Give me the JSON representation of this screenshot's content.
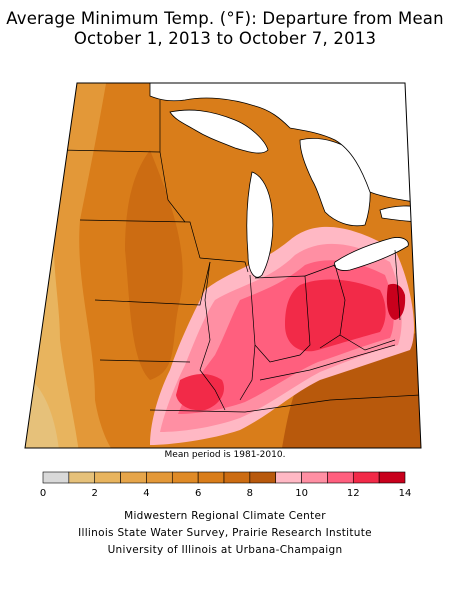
{
  "title": {
    "line1": "Average Minimum Temp. (°F): Departure from Mean",
    "line2": "October 1, 2013 to October 7, 2013"
  },
  "note": "Mean period is 1981-2010.",
  "legend": {
    "bins": [
      {
        "from": 0,
        "to": 1,
        "color": "#d9d9d9"
      },
      {
        "from": 1,
        "to": 2,
        "color": "#e6c17a"
      },
      {
        "from": 2,
        "to": 3,
        "color": "#e8b45e"
      },
      {
        "from": 3,
        "to": 4,
        "color": "#e6a54a"
      },
      {
        "from": 4,
        "to": 5,
        "color": "#e39838"
      },
      {
        "from": 5,
        "to": 6,
        "color": "#df8a26"
      },
      {
        "from": 6,
        "to": 7,
        "color": "#d97d1a"
      },
      {
        "from": 7,
        "to": 8,
        "color": "#cc6c12"
      },
      {
        "from": 8,
        "to": 9,
        "color": "#b8590c"
      },
      {
        "from": 9,
        "to": 10,
        "color": "#ffb8c4"
      },
      {
        "from": 10,
        "to": 11,
        "color": "#ff8fa3"
      },
      {
        "from": 11,
        "to": 12,
        "color": "#ff5f7e"
      },
      {
        "from": 12,
        "to": 13,
        "color": "#f22a48"
      },
      {
        "from": 13,
        "to": 14,
        "color": "#c8001c"
      }
    ],
    "tick_labels": [
      "0",
      "2",
      "4",
      "6",
      "8",
      "10",
      "12",
      "14"
    ]
  },
  "credits": [
    "Midwestern Regional Climate Center",
    "Illinois State Water Survey, Prairie Research Institute",
    "University of Illinois at Urbana-Champaign"
  ]
}
